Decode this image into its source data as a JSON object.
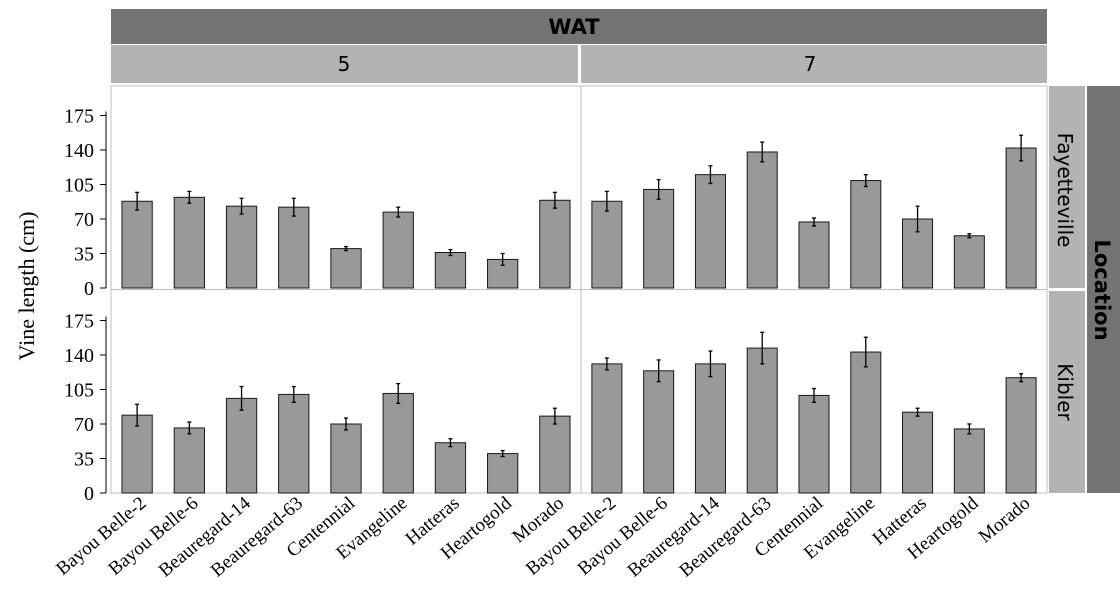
{
  "chart_data": {
    "type": "bar",
    "ylabel": "Vine length (cm)",
    "ylim": [
      0,
      185
    ],
    "yticks": [
      0,
      35,
      70,
      105,
      140,
      175
    ],
    "facet_col_title": "WAT",
    "facet_row_title": "Location",
    "categories": [
      "Bayou Belle-2",
      "Bayou Belle-6",
      "Beauregard-14",
      "Beauregard-63",
      "Centennial",
      "Evangeline",
      "Hatteras",
      "Heartogold",
      "Morado"
    ],
    "panels": [
      {
        "wat": "5",
        "location": "Fayetteville",
        "values": [
          88,
          92,
          83,
          82,
          40,
          77,
          36,
          29,
          89
        ],
        "errors": [
          9,
          6,
          8,
          9,
          2,
          5,
          3,
          6,
          8
        ]
      },
      {
        "wat": "7",
        "location": "Fayetteville",
        "values": [
          88,
          100,
          115,
          138,
          67,
          109,
          70,
          53,
          142
        ],
        "errors": [
          10,
          10,
          9,
          10,
          4,
          6,
          13,
          2,
          13
        ]
      },
      {
        "wat": "5",
        "location": "Kibler",
        "values": [
          79,
          66,
          96,
          100,
          70,
          101,
          51,
          40,
          78
        ],
        "errors": [
          11,
          6,
          12,
          8,
          6,
          10,
          4,
          3,
          8
        ]
      },
      {
        "wat": "7",
        "location": "Kibler",
        "values": [
          131,
          124,
          131,
          147,
          99,
          143,
          82,
          65,
          117
        ],
        "errors": [
          6,
          11,
          13,
          16,
          7,
          15,
          4,
          5,
          4
        ]
      }
    ]
  },
  "colors": {
    "bar": "#999999",
    "strip_dark": "#737373",
    "strip_light": "#b3b3b3"
  }
}
